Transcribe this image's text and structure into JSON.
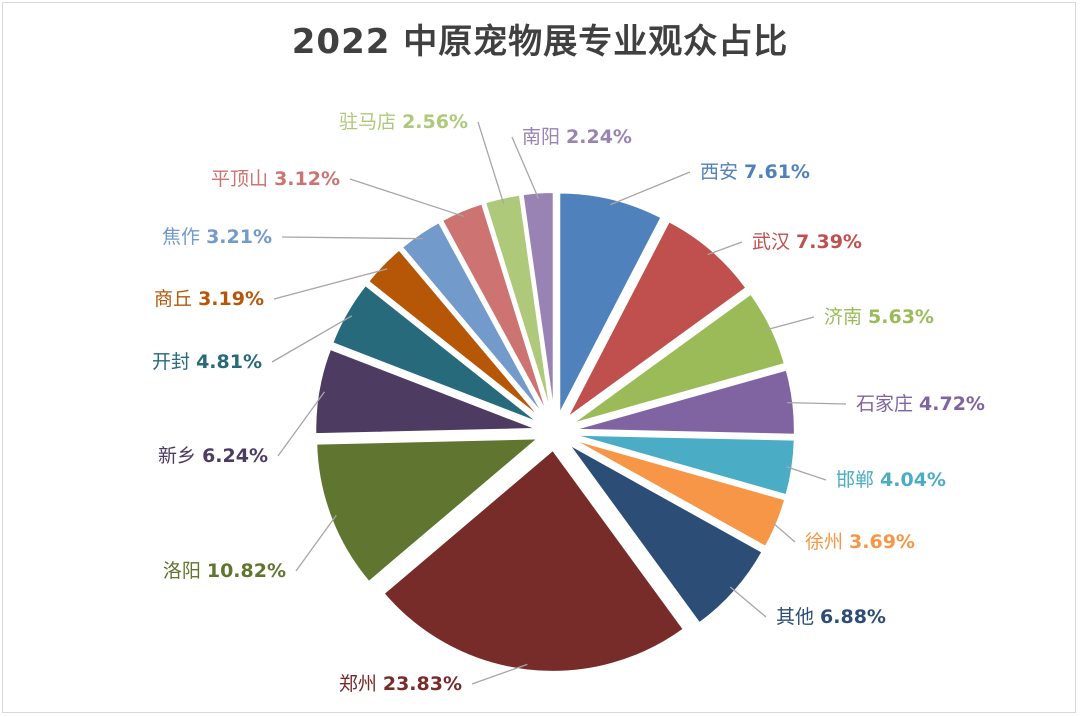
{
  "chart_data": {
    "type": "pie",
    "title": "2022 中原宠物展专业观众占比",
    "slices": [
      {
        "label": "西安",
        "value": 7.61,
        "value_label": "7.61%",
        "color": "#4f81bd"
      },
      {
        "label": "武汉",
        "value": 7.39,
        "value_label": "7.39%",
        "color": "#c0504d"
      },
      {
        "label": "济南",
        "value": 5.63,
        "value_label": "5.63%",
        "color": "#9bbb59"
      },
      {
        "label": "石家庄",
        "value": 4.72,
        "value_label": "4.72%",
        "color": "#8064a2"
      },
      {
        "label": "邯郸",
        "value": 4.04,
        "value_label": "4.04%",
        "color": "#4bacc6"
      },
      {
        "label": "徐州",
        "value": 3.69,
        "value_label": "3.69%",
        "color": "#f79646"
      },
      {
        "label": "其他",
        "value": 6.88,
        "value_label": "6.88%",
        "color": "#2c4d75"
      },
      {
        "label": "郑州",
        "value": 23.83,
        "value_label": "23.83%",
        "color": "#772c2a"
      },
      {
        "label": "洛阳",
        "value": 10.82,
        "value_label": "10.82%",
        "color": "#5f7530"
      },
      {
        "label": "新乡",
        "value": 6.24,
        "value_label": "6.24%",
        "color": "#4d3b62"
      },
      {
        "label": "开封",
        "value": 4.81,
        "value_label": "4.81%",
        "color": "#276a7c"
      },
      {
        "label": "商丘",
        "value": 3.19,
        "value_label": "3.19%",
        "color": "#b65708"
      },
      {
        "label": "焦作",
        "value": 3.21,
        "value_label": "3.21%",
        "color": "#729aca"
      },
      {
        "label": "平顶山",
        "value": 3.12,
        "value_label": "3.12%",
        "color": "#cd7371"
      },
      {
        "label": "驻马店",
        "value": 2.56,
        "value_label": "2.56%",
        "color": "#afc97a"
      },
      {
        "label": "南阳",
        "value": 2.24,
        "value_label": "2.24%",
        "color": "#9983b5"
      }
    ],
    "legend": "none",
    "start": "12 o'clock, clockwise",
    "exploded": true
  }
}
